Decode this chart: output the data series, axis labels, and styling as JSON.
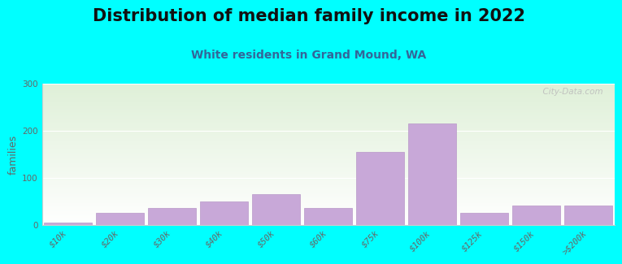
{
  "title": "Distribution of median family income in 2022",
  "subtitle": "White residents in Grand Mound, WA",
  "ylabel": "families",
  "categories": [
    "$10k",
    "$20k",
    "$30k",
    "$40k",
    "$50k",
    "$60k",
    "$75k",
    "$100k",
    "$125k",
    "$150k",
    ">$200k"
  ],
  "values": [
    5,
    25,
    35,
    50,
    65,
    35,
    155,
    215,
    25,
    40,
    40
  ],
  "bar_color": "#C8A8D8",
  "bar_edge_color": "#B898C8",
  "background_color": "#00FFFF",
  "plot_bg_top": "#dff0d8",
  "plot_bg_bottom": "#ffffff",
  "ylim": [
    0,
    300
  ],
  "yticks": [
    0,
    100,
    200,
    300
  ],
  "title_fontsize": 15,
  "subtitle_fontsize": 10,
  "ylabel_fontsize": 9,
  "tick_fontsize": 7.5,
  "watermark": "  City-Data.com"
}
